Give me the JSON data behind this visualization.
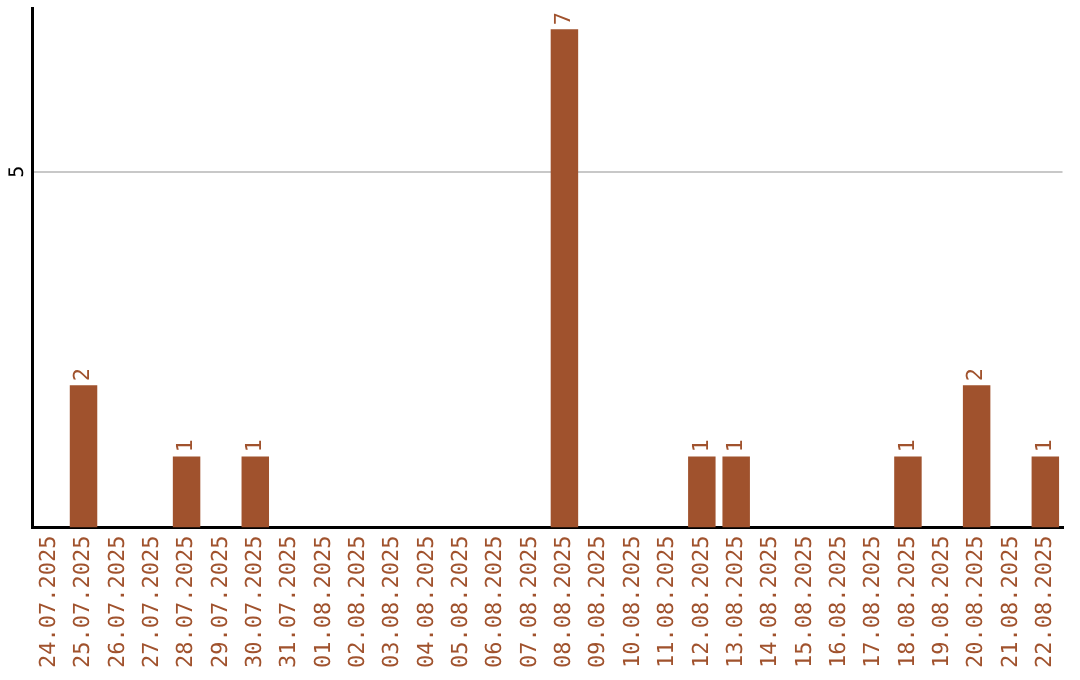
{
  "chart_data": {
    "type": "bar",
    "categories": [
      "24.07.2025",
      "25.07.2025",
      "26.07.2025",
      "27.07.2025",
      "28.07.2025",
      "29.07.2025",
      "30.07.2025",
      "31.07.2025",
      "01.08.2025",
      "02.08.2025",
      "03.08.2025",
      "04.08.2025",
      "05.08.2025",
      "06.08.2025",
      "07.08.2025",
      "08.08.2025",
      "09.08.2025",
      "10.08.2025",
      "11.08.2025",
      "12.08.2025",
      "13.08.2025",
      "14.08.2025",
      "15.08.2025",
      "16.08.2025",
      "17.08.2025",
      "18.08.2025",
      "19.08.2025",
      "20.08.2025",
      "21.08.2025",
      "22.08.2025"
    ],
    "values": [
      null,
      2,
      null,
      null,
      1,
      null,
      1,
      null,
      null,
      null,
      null,
      null,
      null,
      null,
      null,
      7,
      null,
      null,
      null,
      1,
      1,
      null,
      null,
      null,
      null,
      1,
      null,
      2,
      null,
      1
    ],
    "color": "#a0522d",
    "ylim": [
      0,
      7.3
    ],
    "yticks": [
      5
    ],
    "grid": "y",
    "data_labels": true,
    "legend": false
  }
}
